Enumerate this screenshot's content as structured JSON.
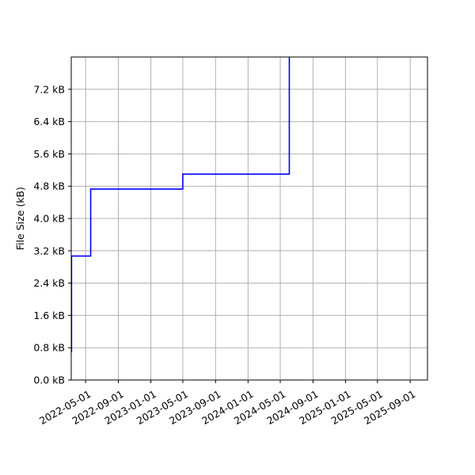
{
  "chart_data": {
    "type": "line",
    "step": true,
    "title": "",
    "xlabel": "",
    "ylabel": "File Size (kB)",
    "x_scale": "time",
    "xlim": [
      "2022-03-08",
      "2025-11-05"
    ],
    "ylim": [
      0,
      8.0
    ],
    "grid": true,
    "legend": "none",
    "colors": {
      "line": "#0000ff",
      "grid": "#b0b0b0",
      "axes": "#000000"
    },
    "x_ticks": [
      {
        "value": "2022-05-01",
        "label": "2022-05-01"
      },
      {
        "value": "2022-09-01",
        "label": "2022-09-01"
      },
      {
        "value": "2023-01-01",
        "label": "2023-01-01"
      },
      {
        "value": "2023-05-01",
        "label": "2023-05-01"
      },
      {
        "value": "2023-09-01",
        "label": "2023-09-01"
      },
      {
        "value": "2024-01-01",
        "label": "2024-01-01"
      },
      {
        "value": "2024-05-01",
        "label": "2024-05-01"
      },
      {
        "value": "2024-09-01",
        "label": "2024-09-01"
      },
      {
        "value": "2025-01-01",
        "label": "2025-01-01"
      },
      {
        "value": "2025-05-01",
        "label": "2025-05-01"
      },
      {
        "value": "2025-09-01",
        "label": "2025-09-01"
      }
    ],
    "y_ticks": [
      {
        "value": 0.0,
        "label": "0.0 kB"
      },
      {
        "value": 0.8,
        "label": "0.8 kB"
      },
      {
        "value": 1.6,
        "label": "1.6 kB"
      },
      {
        "value": 2.4,
        "label": "2.4 kB"
      },
      {
        "value": 3.2,
        "label": "3.2 kB"
      },
      {
        "value": 4.0,
        "label": "4.0 kB"
      },
      {
        "value": 4.8,
        "label": "4.8 kB"
      },
      {
        "value": 5.6,
        "label": "5.6 kB"
      },
      {
        "value": 6.4,
        "label": "6.4 kB"
      },
      {
        "value": 7.2,
        "label": "7.2 kB"
      }
    ],
    "series": [
      {
        "color": "#0000ff",
        "points": [
          {
            "x": "2022-03-08",
            "y": 0.7
          },
          {
            "x": "2022-03-09",
            "y": 3.07
          },
          {
            "x": "2022-05-20",
            "y": 4.73
          },
          {
            "x": "2023-05-01",
            "y": 5.1
          },
          {
            "x": "2024-06-04",
            "y": 8.0
          }
        ]
      }
    ]
  }
}
